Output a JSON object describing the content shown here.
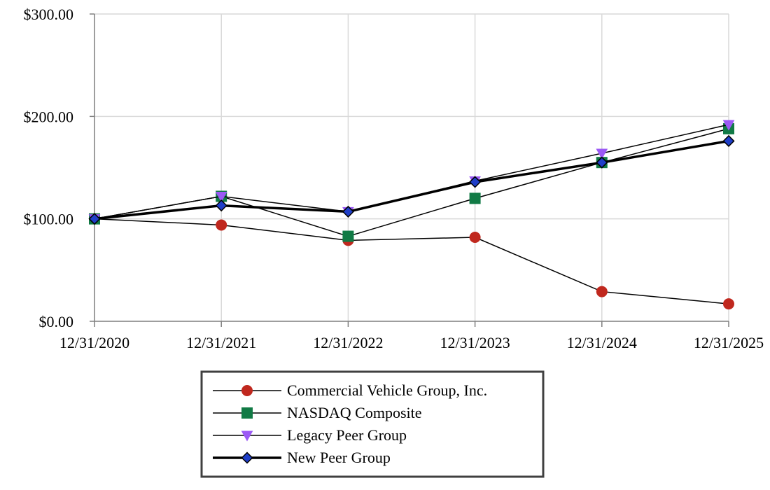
{
  "chart_data": {
    "type": "line",
    "title": "",
    "xlabel": "",
    "ylabel": "",
    "categories": [
      "12/31/2020",
      "12/31/2021",
      "12/31/2022",
      "12/31/2023",
      "12/31/2024",
      "12/31/2025"
    ],
    "y_ticks": [
      "$0.00",
      "$100.00",
      "$200.00",
      "$300.00"
    ],
    "ylim": [
      0,
      300
    ],
    "grid": true,
    "legend_position": "bottom-center",
    "series": [
      {
        "name": "Commercial Vehicle Group, Inc.",
        "values": [
          100,
          94,
          79,
          82,
          29,
          17
        ],
        "marker": "circle",
        "color": "#c0281e",
        "line_color": "#000000",
        "line_style": "thin"
      },
      {
        "name": "NASDAQ Composite",
        "values": [
          100,
          122,
          83,
          120,
          155,
          188
        ],
        "marker": "square",
        "color": "#117a45",
        "line_color": "#000000",
        "line_style": "thin"
      },
      {
        "name": "Legacy Peer Group",
        "values": [
          100,
          122,
          107,
          137,
          164,
          192
        ],
        "marker": "triangle-down",
        "color": "#9b59f5",
        "line_color": "#000000",
        "line_style": "thin"
      },
      {
        "name": "New Peer Group",
        "values": [
          100,
          113,
          107,
          136,
          155,
          176
        ],
        "marker": "diamond",
        "color": "#1f3ec8",
        "line_color": "#000000",
        "line_style": "thick"
      }
    ]
  }
}
